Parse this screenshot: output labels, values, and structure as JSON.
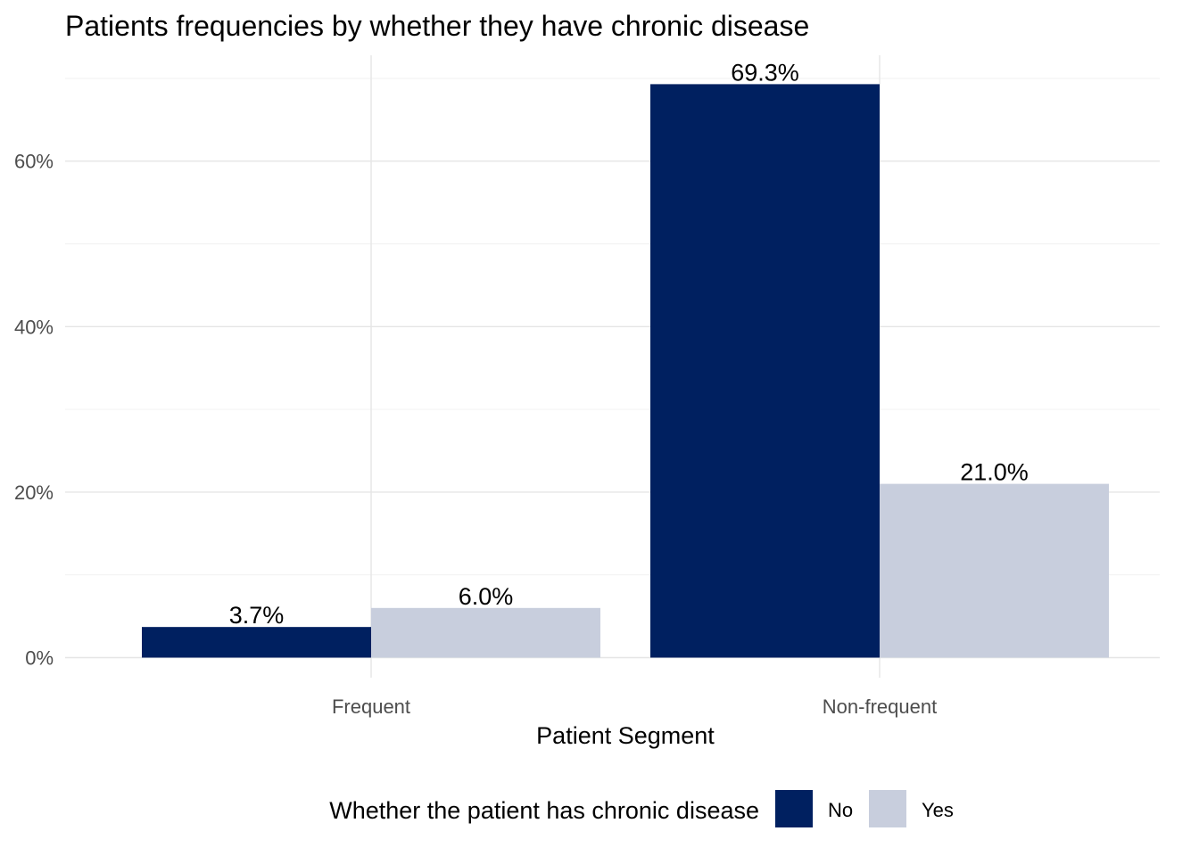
{
  "chart_data": {
    "type": "bar",
    "title": "Patients frequencies by whether they have chronic disease",
    "xlabel": "Patient Segment",
    "ylabel": "",
    "categories": [
      "Frequent",
      "Non-frequent"
    ],
    "series": [
      {
        "name": "No",
        "values": [
          3.7,
          69.3
        ],
        "labels": [
          "3.7%",
          "69.3%"
        ],
        "color": "#002060"
      },
      {
        "name": "Yes",
        "values": [
          6.0,
          21.0
        ],
        "labels": [
          "6.0%",
          "21.0%"
        ],
        "color": "#c8cedd"
      }
    ],
    "ylim": [
      0,
      70
    ],
    "yticks": [
      0,
      20,
      40,
      60
    ],
    "ytick_labels": [
      "0%",
      "20%",
      "40%",
      "60%"
    ],
    "grid": true,
    "legend": {
      "title": "Whether the patient has chronic disease",
      "position": "bottom",
      "items": [
        "No",
        "Yes"
      ]
    }
  }
}
